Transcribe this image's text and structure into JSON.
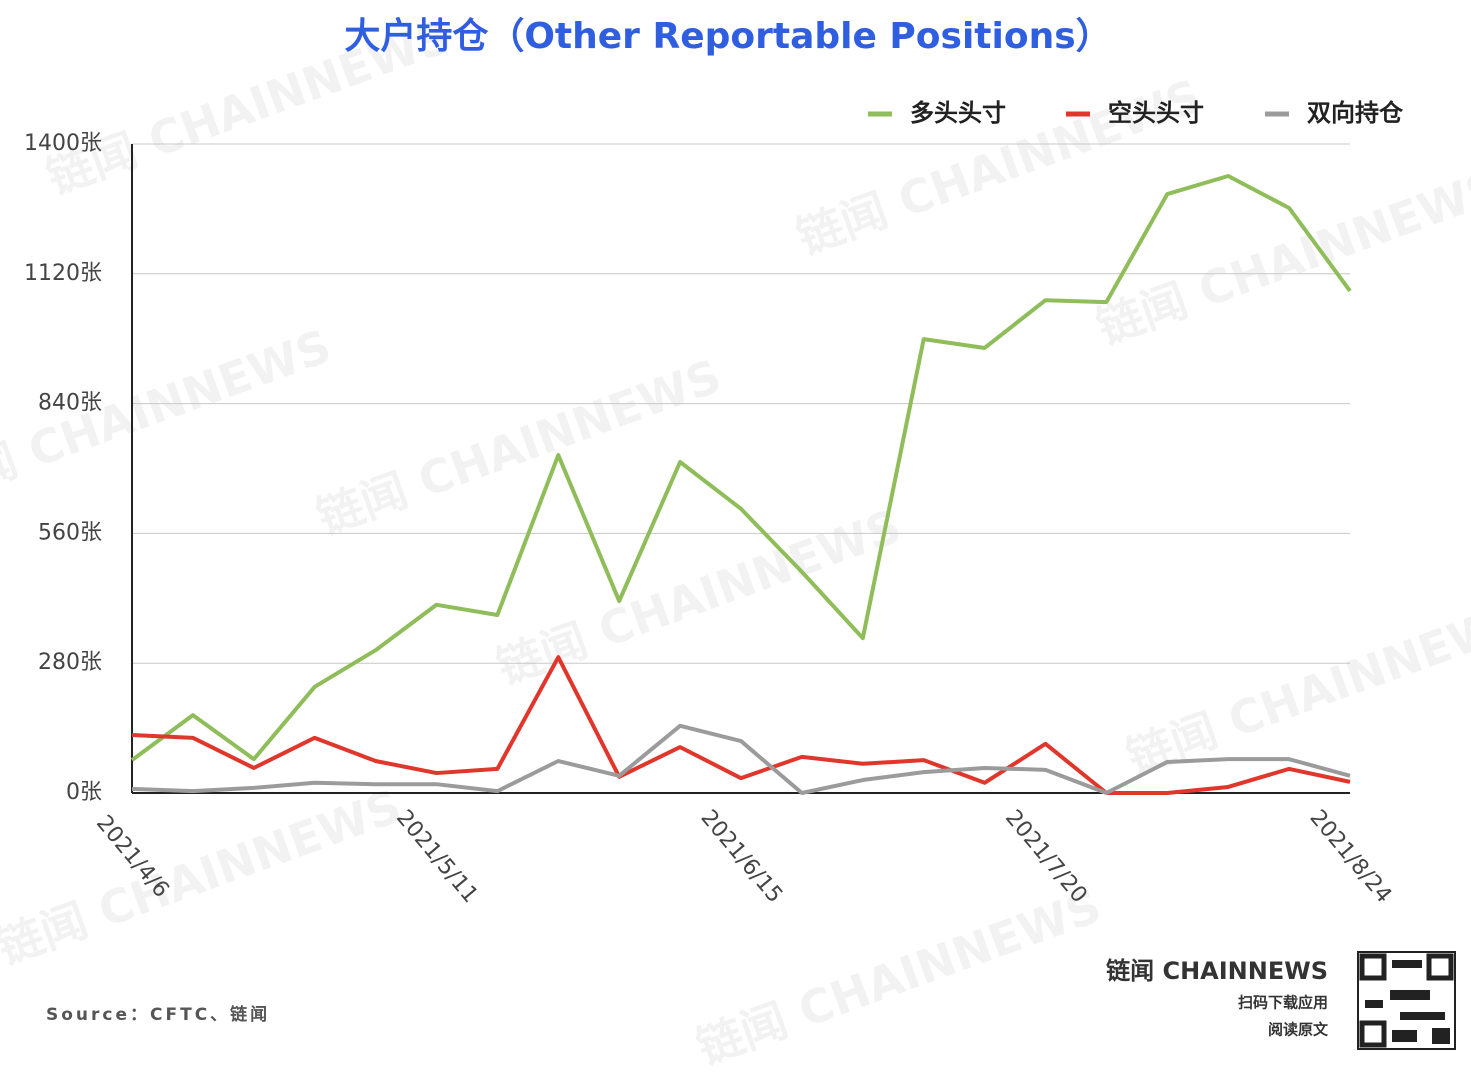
{
  "chart_data": {
    "type": "line",
    "title": "大户持仓（Other Reportable Positions）",
    "categories": [
      "2021/4/6",
      null,
      null,
      null,
      null,
      "2021/5/11",
      null,
      null,
      null,
      null,
      "2021/6/15",
      null,
      null,
      null,
      null,
      "2021/7/20",
      null,
      null,
      null,
      null,
      "2021/8/24"
    ],
    "series": [
      {
        "name": "多头头寸",
        "color": "#8fbd5a",
        "values": [
          71,
          168,
          73,
          229,
          308,
          406,
          384,
          729,
          414,
          714,
          613,
          477,
          334,
          979,
          960,
          1063,
          1059,
          1292,
          1331,
          1262,
          1083
        ]
      },
      {
        "name": "空头头寸",
        "color": "#e0362b",
        "values": [
          125,
          119,
          54,
          119,
          69,
          43,
          52,
          293,
          35,
          99,
          32,
          78,
          63,
          71,
          22,
          106,
          0,
          0,
          13,
          52,
          24
        ]
      },
      {
        "name": "双向持仓",
        "color": "#9b9b9b",
        "values": [
          9,
          4,
          11,
          22,
          19,
          19,
          4,
          69,
          37,
          145,
          112,
          0,
          28,
          45,
          54,
          50,
          0,
          67,
          73,
          73,
          37
        ]
      }
    ],
    "ylim": [
      0,
      1400
    ],
    "yticks": [
      {
        "value": 0,
        "label": "0张"
      },
      {
        "value": 280,
        "label": "280张"
      },
      {
        "value": 560,
        "label": "560张"
      },
      {
        "value": 840,
        "label": "840张"
      },
      {
        "value": 1120,
        "label": "1120张"
      },
      {
        "value": 1400,
        "label": "1400张"
      }
    ],
    "grid": true,
    "legend": "top-right",
    "source": "Source：CFTC、链闻",
    "watermark": "链闻 CHAINNEWS",
    "brand": "链闻 CHAINNEWS",
    "brand_lines": [
      "扫码下载应用",
      "阅读原文"
    ]
  }
}
